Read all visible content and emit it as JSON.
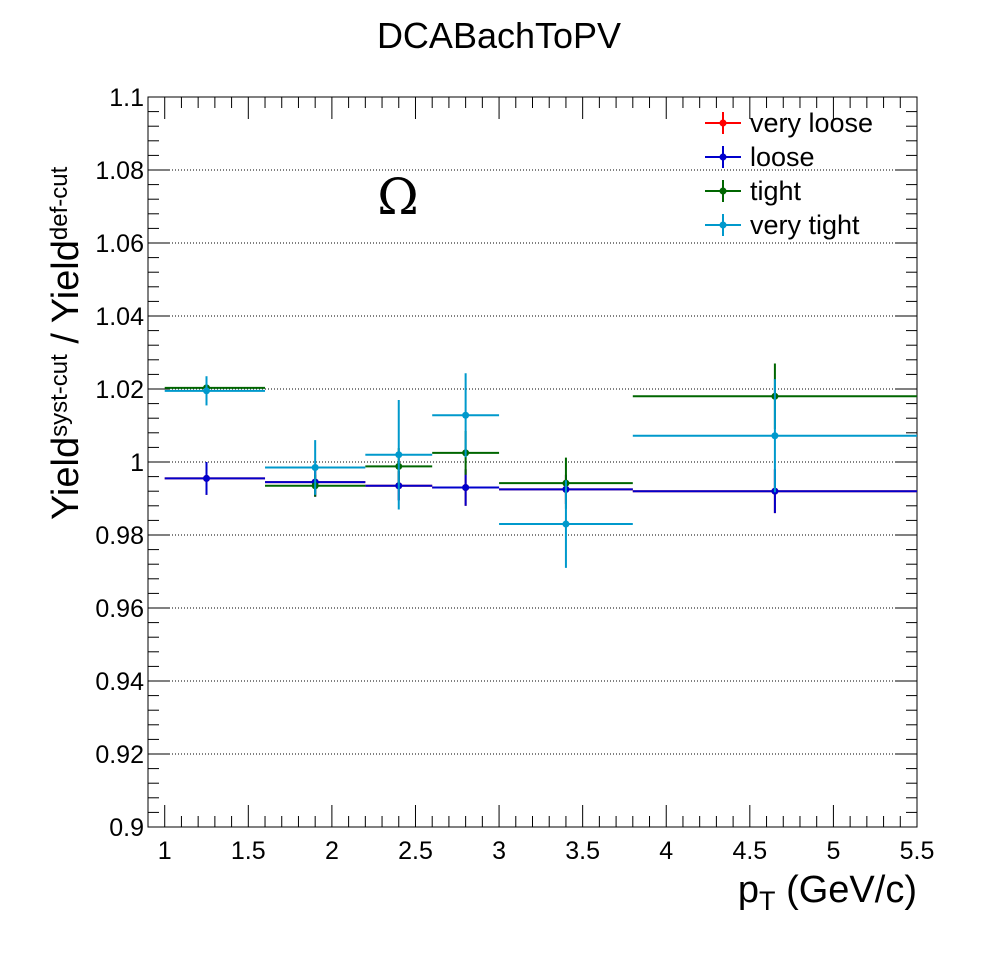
{
  "chart_data": {
    "type": "scatter",
    "title": "DCABachToPV",
    "annotation": "Ω",
    "xlabel": {
      "main": "p",
      "sub": "T",
      "rest": " (GeV/c)"
    },
    "ylabel": {
      "a": "Yield",
      "a_sup": "syst-cut",
      "sep": " / ",
      "b": "Yield",
      "b_sup": "def-cut"
    },
    "xlim": [
      0.9,
      5.5
    ],
    "ylim": [
      0.9,
      1.1
    ],
    "xticks": [
      1,
      1.5,
      2,
      2.5,
      3,
      3.5,
      4,
      4.5,
      5,
      5.5
    ],
    "xtick_labels": [
      "1",
      "1.5",
      "2",
      "2.5",
      "3",
      "3.5",
      "4",
      "4.5",
      "5",
      "5.5"
    ],
    "yticks": [
      0.9,
      0.92,
      0.94,
      0.96,
      0.98,
      1,
      1.02,
      1.04,
      1.06,
      1.08,
      1.1
    ],
    "ytick_labels": [
      "0.9",
      "0.92",
      "0.94",
      "0.96",
      "0.98",
      "1",
      "1.02",
      "1.04",
      "1.06",
      "1.08",
      "1.1"
    ],
    "grid": true,
    "legend_position": "top-right",
    "bins": [
      [
        1.0,
        1.6
      ],
      [
        1.6,
        2.2
      ],
      [
        2.2,
        2.6
      ],
      [
        2.6,
        3.0
      ],
      [
        3.0,
        3.8
      ],
      [
        3.8,
        5.5
      ]
    ],
    "x": [
      1.25,
      1.9,
      2.4,
      2.8,
      3.4,
      4.65
    ],
    "series": [
      {
        "name": "very loose",
        "color": "#ff0000",
        "values": [
          0.9955,
          0.9945,
          0.9935,
          0.993,
          0.9925,
          0.992
        ],
        "errors": [
          0.0045,
          0.004,
          0.004,
          0.005,
          0.004,
          0.006
        ]
      },
      {
        "name": "loose",
        "color": "#0000cc",
        "values": [
          0.9955,
          0.9945,
          0.9935,
          0.993,
          0.9925,
          0.992
        ],
        "errors": [
          0.0045,
          0.004,
          0.004,
          0.005,
          0.004,
          0.006
        ]
      },
      {
        "name": "tight",
        "color": "#006600",
        "values": [
          1.0203,
          0.9935,
          0.9988,
          1.0025,
          0.9942,
          1.018
        ],
        "errors": [
          0.003,
          0.003,
          0.005,
          0.006,
          0.007,
          0.009
        ]
      },
      {
        "name": "very tight",
        "color": "#0099cc",
        "values": [
          1.0195,
          0.9985,
          1.002,
          1.0128,
          0.983,
          1.0072
        ],
        "errors": [
          0.004,
          0.0075,
          0.015,
          0.0115,
          0.012,
          0.0155
        ]
      }
    ]
  }
}
